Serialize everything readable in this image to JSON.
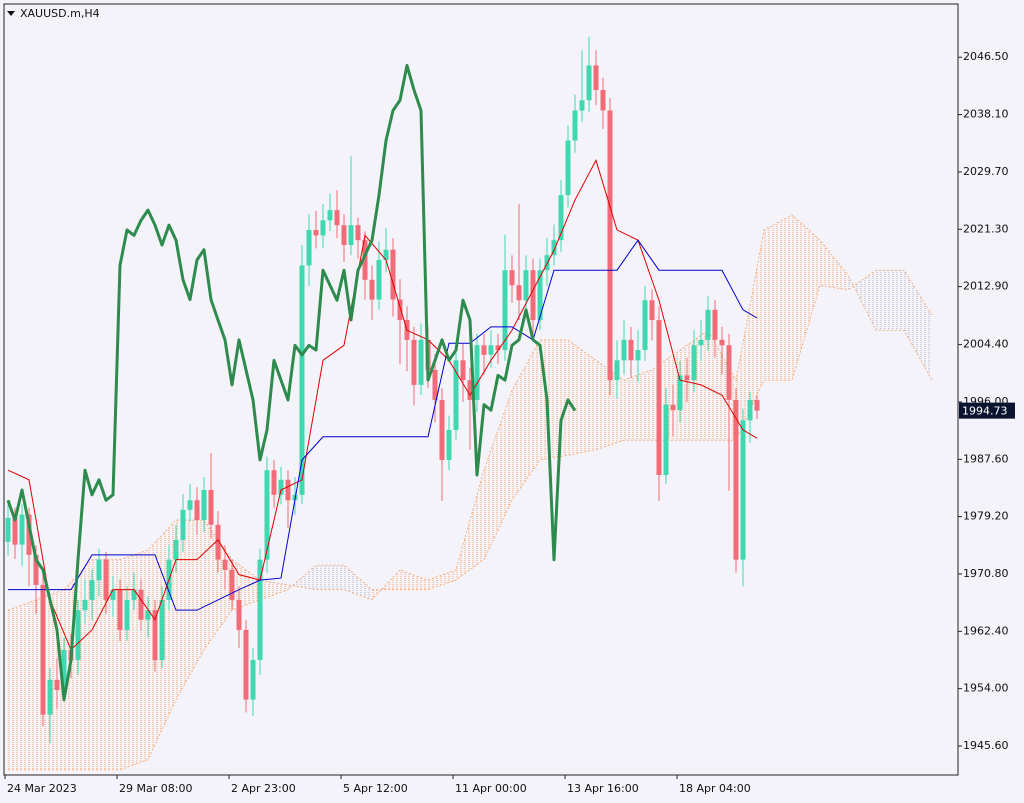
{
  "chart_data": {
    "type": "candlestick",
    "title": "XAUUSD.m,H4",
    "categories": [
      "24 Mar 2023",
      null,
      null,
      null,
      null,
      null,
      null,
      null,
      null,
      null,
      null,
      null,
      null,
      null,
      null,
      null,
      "29 Mar 08:00",
      null,
      null,
      null,
      null,
      null,
      null,
      null,
      null,
      null,
      null,
      null,
      null,
      null,
      null,
      null,
      "2 Apr 23:00",
      null,
      null,
      null,
      null,
      null,
      null,
      null,
      null,
      null,
      null,
      null,
      null,
      null,
      null,
      null,
      "5 Apr 12:00",
      null,
      null,
      null,
      null,
      null,
      null,
      null,
      null,
      null,
      null,
      null,
      null,
      null,
      null,
      null,
      "11 Apr 00:00",
      null,
      null,
      null,
      null,
      null,
      null,
      null,
      null,
      null,
      null,
      null,
      null,
      null,
      null,
      null,
      "13 Apr 16:00",
      null,
      null,
      null,
      null,
      null,
      null,
      null,
      null,
      null,
      null,
      null,
      null,
      null,
      null,
      null,
      "18 Apr 04:00",
      null,
      null,
      null,
      null,
      null,
      null,
      null,
      null,
      null,
      null,
      null
    ],
    "open": [
      1975.5,
      1979.0,
      1975.1,
      1979.5,
      1973.6,
      1969.2,
      1950.2,
      1955.3,
      1953.8,
      1959.7,
      1958.2,
      1965.5,
      1967.0,
      1969.9,
      1972.9,
      1967.0,
      1968.5,
      1962.6,
      1967.0,
      1968.5,
      1964.1,
      1965.5,
      1958.2,
      1967.0,
      1972.9,
      1975.8,
      1980.2,
      1981.6,
      1978.7,
      1983.1,
      1978.0,
      1972.9,
      1971.4,
      1967.0,
      1962.6,
      1952.4,
      1958.2,
      1972.9,
      1986.0,
      1982.4,
      1984.6,
      1981.6,
      1982.4,
      2016.0,
      2021.2,
      2020.4,
      2022.6,
      2024.1,
      2021.9,
      2019.0,
      2021.9,
      2019.7,
      2013.9,
      2011.0,
      2016.8,
      2018.3,
      2011.0,
      2008.0,
      2005.1,
      1998.5,
      2005.1,
      2000.7,
      1996.3,
      1987.5,
      1991.9,
      2002.1,
      1999.2,
      1996.3,
      2004.3,
      2002.9,
      2004.3,
      2003.6,
      2015.3,
      2013.1,
      2010.9,
      2015.3,
      2008.0,
      2015.3,
      2017.5,
      2019.7,
      2026.3,
      2034.3,
      2038.7,
      2040.2,
      2045.3,
      2041.7,
      2038.7,
      1999.2,
      2002.1,
      2005.1,
      2002.1,
      2003.6,
      2010.9,
      2008.0,
      1985.3,
      1995.6,
      1994.8,
      1999.9,
      1999.2,
      2004.3,
      2005.1,
      2009.5,
      2005.1,
      2004.3,
      1996.3,
      1972.9,
      1993.3,
      1996.3
    ],
    "high": [
      1981.0,
      1980.5,
      1981.0,
      1980.5,
      1975.0,
      1971.0,
      1957.0,
      1958.5,
      1961.5,
      1962.0,
      1967.0,
      1970.0,
      1971.5,
      1974.5,
      1974.0,
      1970.5,
      1970.0,
      1969.0,
      1971.0,
      1970.0,
      1967.5,
      1967.0,
      1969.0,
      1975.0,
      1978.0,
      1982.5,
      1984.0,
      1983.5,
      1985.0,
      1988.5,
      1980.0,
      1975.0,
      1973.0,
      1969.0,
      1964.0,
      1960.0,
      1974.5,
      1988.0,
      1987.5,
      1986.5,
      1986.0,
      1985.0,
      2019.0,
      2023.5,
      2024.0,
      2025.0,
      2026.5,
      2027.0,
      2023.5,
      2032.0,
      2023.0,
      2021.0,
      2016.0,
      2019.5,
      2021.5,
      2020.0,
      2014.0,
      2010.0,
      2007.0,
      2007.5,
      2007.0,
      2003.0,
      1998.0,
      1994.0,
      2004.0,
      2004.5,
      2001.0,
      2006.0,
      2006.0,
      2006.5,
      2006.0,
      2020.5,
      2017.5,
      2025.0,
      2017.5,
      2017.0,
      2017.0,
      2020.0,
      2022.0,
      2028.5,
      2036.5,
      2041.0,
      2047.5,
      2049.5,
      2047.5,
      2043.5,
      2040.5,
      2005.0,
      2008.0,
      2007.0,
      2006.5,
      2013.0,
      2012.5,
      2010.0,
      1998.0,
      1998.5,
      2002.0,
      2002.5,
      2006.5,
      2008.0,
      2011.5,
      2011.0,
      2007.0,
      2006.0,
      1998.0,
      1995.0,
      1997.5,
      1997.0
    ],
    "low": [
      1973.5,
      1973.0,
      1972.0,
      1969.0,
      1965.0,
      1948.5,
      1946.0,
      1951.0,
      1952.0,
      1955.5,
      1956.0,
      1963.5,
      1964.0,
      1967.5,
      1965.0,
      1964.5,
      1961.0,
      1961.0,
      1965.5,
      1962.5,
      1961.5,
      1956.5,
      1957.0,
      1965.5,
      1971.0,
      1974.0,
      1978.5,
      1976.5,
      1977.0,
      1976.0,
      1971.0,
      1968.5,
      1965.5,
      1960.0,
      1950.5,
      1950.0,
      1956.0,
      1971.0,
      1980.5,
      1981.0,
      1977.5,
      1979.5,
      1981.0,
      2013.0,
      2018.5,
      2018.5,
      2021.0,
      2020.0,
      2016.5,
      2017.5,
      2017.0,
      2011.0,
      2008.0,
      2009.5,
      2015.0,
      2008.5,
      2001.5,
      2000.5,
      1995.5,
      1997.0,
      1998.0,
      1993.0,
      1981.5,
      1986.0,
      1990.5,
      1996.0,
      1989.0,
      1994.5,
      2000.0,
      2001.0,
      2001.5,
      2002.0,
      2010.5,
      2008.0,
      2009.0,
      2005.5,
      2006.5,
      2013.0,
      2016.0,
      2018.0,
      2024.5,
      2032.5,
      2037.0,
      2038.5,
      2039.5,
      2036.0,
      1997.0,
      1996.5,
      2000.0,
      1999.5,
      1999.0,
      2002.0,
      2005.0,
      1981.5,
      1984.0,
      1991.0,
      1993.0,
      1996.0,
      1997.5,
      2002.0,
      2003.5,
      2002.5,
      2000.0,
      1983.0,
      1971.0,
      1969.0,
      1990.0,
      1993.5
    ],
    "close": [
      1979.0,
      1975.1,
      1979.5,
      1973.6,
      1969.2,
      1950.2,
      1955.3,
      1953.8,
      1959.7,
      1958.2,
      1965.5,
      1967.0,
      1969.9,
      1972.9,
      1967.0,
      1968.5,
      1962.6,
      1967.0,
      1968.5,
      1964.1,
      1965.5,
      1958.2,
      1967.0,
      1972.9,
      1975.8,
      1980.2,
      1981.6,
      1978.7,
      1983.1,
      1978.0,
      1972.9,
      1971.4,
      1967.0,
      1962.6,
      1952.4,
      1958.2,
      1972.9,
      1986.0,
      1982.4,
      1984.6,
      1981.6,
      1982.4,
      2016.0,
      2021.2,
      2020.4,
      2022.6,
      2024.1,
      2021.9,
      2019.0,
      2021.9,
      2019.7,
      2013.9,
      2011.0,
      2016.8,
      2018.3,
      2011.0,
      2008.0,
      2005.1,
      1998.5,
      2005.1,
      2000.7,
      1996.3,
      1987.5,
      1991.9,
      2002.1,
      1999.2,
      1996.3,
      2004.3,
      2002.9,
      2004.3,
      2003.6,
      2015.3,
      2013.1,
      2010.9,
      2015.3,
      2008.0,
      2015.3,
      2017.5,
      2019.7,
      2026.3,
      2034.3,
      2038.7,
      2040.2,
      2045.3,
      2041.7,
      2038.7,
      1999.2,
      2002.1,
      2005.1,
      2002.1,
      2003.6,
      2010.9,
      2008.0,
      1985.3,
      1995.6,
      1994.8,
      1999.9,
      1999.2,
      2004.3,
      2005.1,
      2009.5,
      2005.1,
      2004.3,
      1996.3,
      1972.9,
      1993.3,
      1996.3,
      1994.73
    ],
    "up_color": "#3fd8b0",
    "down_color": "#f26b78",
    "ylim": [
      1941.35,
      2054.3
    ],
    "yticks": [
      {
        "value": 2046.5,
        "label": "2046.50"
      },
      {
        "value": 2038.1,
        "label": "2038.10"
      },
      {
        "value": 2029.7,
        "label": "2029.70"
      },
      {
        "value": 2021.3,
        "label": "2021.30"
      },
      {
        "value": 2012.9,
        "label": "2012.90"
      },
      {
        "value": 2004.4,
        "label": "2004.40"
      },
      {
        "value": 1996.0,
        "label": "1996.00"
      },
      {
        "value": 1987.6,
        "label": "1987.60"
      },
      {
        "value": 1979.2,
        "label": "1979.20"
      },
      {
        "value": 1970.8,
        "label": "1970.80"
      },
      {
        "value": 1962.4,
        "label": "1962.40"
      },
      {
        "value": 1954.0,
        "label": "1954.00"
      },
      {
        "value": 1945.6,
        "label": "1945.60"
      }
    ],
    "grid": false,
    "tenkan": {
      "color": "#e00000",
      "x": [
        0,
        3,
        6,
        9,
        12,
        15,
        18,
        21,
        24,
        27,
        30,
        33,
        36,
        39,
        42,
        45,
        48,
        51,
        54,
        57,
        60,
        63,
        66,
        69,
        72,
        75,
        78,
        81,
        84,
        87,
        90,
        93,
        96,
        99,
        102,
        105,
        107
      ],
      "values": [
        1986.0,
        1984.6,
        1967.0,
        1959.7,
        1962.6,
        1968.5,
        1968.5,
        1964.1,
        1972.9,
        1972.9,
        1975.8,
        1970.7,
        1969.9,
        1983.1,
        1984.6,
        2002.1,
        2004.3,
        2020.4,
        2016.8,
        2006.5,
        2005.1,
        2002.1,
        1997.0,
        2002.1,
        2006.5,
        2012.4,
        2018.2,
        2025.6,
        2031.4,
        2021.2,
        2019.7,
        2010.9,
        1999.2,
        1998.5,
        1997.0,
        1991.9,
        1990.7
      ]
    },
    "kijun": {
      "color": "#0000d0",
      "x": [
        0,
        3,
        6,
        9,
        12,
        15,
        18,
        21,
        24,
        27,
        30,
        33,
        36,
        39,
        42,
        45,
        48,
        51,
        54,
        57,
        60,
        63,
        66,
        69,
        72,
        75,
        78,
        81,
        84,
        87,
        90,
        93,
        96,
        99,
        102,
        105,
        107
      ],
      "values": [
        1968.5,
        1968.5,
        1968.5,
        1968.5,
        1973.6,
        1973.6,
        1973.6,
        1973.6,
        1965.5,
        1965.5,
        1967.0,
        1968.5,
        1969.9,
        1970.2,
        1987.5,
        1990.9,
        1990.9,
        1990.9,
        1990.9,
        1990.9,
        1990.9,
        2004.6,
        2004.6,
        2007.0,
        2007.0,
        2005.1,
        2015.3,
        2015.3,
        2015.3,
        2015.3,
        2019.7,
        2015.3,
        2015.3,
        2015.3,
        2015.3,
        2009.5,
        2008.3
      ]
    },
    "chikou": {
      "color": "#2e8b4e",
      "values": [
        1981.6,
        1978.7,
        1983.1,
        1978.0,
        1972.9,
        1971.4,
        1967.0,
        1962.6,
        1952.4,
        1958.2,
        1972.9,
        1986.0,
        1982.4,
        1984.6,
        1981.6,
        1982.4,
        2016.0,
        2021.2,
        2020.4,
        2022.6,
        2024.1,
        2021.9,
        2019.0,
        2021.9,
        2019.7,
        2013.9,
        2011.0,
        2016.8,
        2018.3,
        2011.0,
        2008.0,
        2005.1,
        1998.5,
        2005.1,
        2000.7,
        1996.3,
        1987.5,
        1991.9,
        2002.1,
        1999.2,
        1996.3,
        2004.3,
        2002.9,
        2004.3,
        2003.6,
        2015.3,
        2013.1,
        2010.9,
        2015.3,
        2008.0,
        2015.3,
        2017.5,
        2019.7,
        2026.3,
        2034.3,
        2038.7,
        2040.2,
        2045.3,
        2041.7,
        2038.7,
        1999.2,
        2002.1,
        2005.1,
        2002.1,
        2003.6,
        2010.9,
        2008.0,
        1985.3,
        1995.6,
        1994.8,
        1999.9,
        1999.2,
        2004.3,
        2005.1,
        2009.5,
        2005.1,
        2004.3,
        1996.3,
        1972.9,
        1993.3,
        1996.3,
        1994.73,
        null,
        null,
        null,
        null,
        null,
        null,
        null,
        null,
        null,
        null,
        null,
        null,
        null,
        null,
        null,
        null,
        null,
        null,
        null,
        null,
        null,
        null,
        null,
        null,
        null,
        null
      ]
    },
    "cloud": {
      "up_color": "#f4a36a",
      "down_color": "#b4aebf",
      "x": [
        0,
        4,
        8,
        12,
        16,
        20,
        24,
        28,
        32,
        36,
        40,
        44,
        48,
        52,
        56,
        60,
        64,
        68,
        72,
        76,
        80,
        84,
        88,
        92,
        96,
        100,
        104,
        108,
        112,
        116,
        120,
        124,
        128,
        132
      ],
      "senkou_a": [
        1965.5,
        1967.0,
        1968.5,
        1972.9,
        1972.9,
        1974.3,
        1978.7,
        1978.7,
        1972.9,
        1969.9,
        1969.2,
        1968.5,
        1968.5,
        1967.0,
        1971.4,
        1969.9,
        1971.4,
        1986.0,
        1997.7,
        2005.1,
        2005.1,
        2002.1,
        1999.2,
        2000.7,
        2003.6,
        2006.5,
        1999.2,
        2021.2,
        2023.4,
        2019.7,
        2014.6,
        2006.5,
        2006.5,
        1999.2
      ],
      "senkou_b": [
        1942.1,
        1942.1,
        1942.1,
        1942.1,
        1942.1,
        1943.6,
        1952.4,
        1959.7,
        1965.5,
        1967.0,
        1968.5,
        1972.1,
        1972.1,
        1968.5,
        1968.5,
        1968.5,
        1969.9,
        1972.9,
        1981.6,
        1987.5,
        1988.2,
        1989.0,
        1990.4,
        1990.4,
        1990.4,
        1990.4,
        1990.4,
        1999.2,
        1999.2,
        2013.1,
        2012.4,
        2015.3,
        2015.3,
        2008.7
      ]
    }
  }
}
